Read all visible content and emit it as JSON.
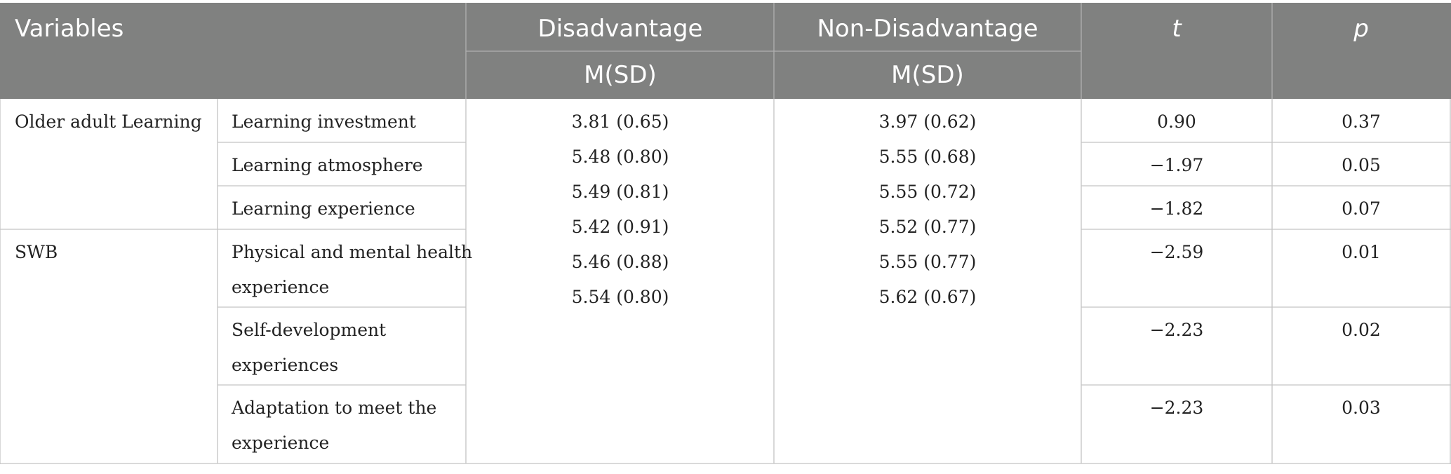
{
  "header": {
    "variables": "Variables",
    "disadvantage": "Disadvantage",
    "non_disadvantage": "Non-Disadvantage",
    "msd_1": "M(SD)",
    "msd_2": "M(SD)",
    "t": "t",
    "p": "p"
  },
  "groups": [
    {
      "label": "Older adult Learning"
    },
    {
      "label": "SWB"
    }
  ],
  "rows": [
    {
      "name": [
        "Learning investment"
      ],
      "t": "0.90",
      "p": "0.37"
    },
    {
      "name": [
        "Learning atmosphere"
      ],
      "t": "−1.97",
      "p": "0.05"
    },
    {
      "name": [
        "Learning experience"
      ],
      "t": "−1.82",
      "p": "0.07"
    },
    {
      "name": [
        "Physical and mental health",
        "experience"
      ],
      "t": "−2.59",
      "p": "0.01"
    },
    {
      "name": [
        "Self-development",
        "experiences"
      ],
      "t": "−2.23",
      "p": "0.02"
    },
    {
      "name": [
        "Adaptation to meet the",
        "experience"
      ],
      "t": "−2.23",
      "p": "0.03"
    }
  ],
  "disadvantage_values": [
    "3.81 (0.65)",
    "5.48 (0.80)",
    "5.49 (0.81)",
    "5.42 (0.91)",
    "5.46 (0.88)",
    "5.54 (0.80)"
  ],
  "non_disadvantage_values": [
    "3.97 (0.62)",
    "5.55 (0.68)",
    "5.55 (0.72)",
    "5.52 (0.77)",
    "5.55 (0.77)",
    "5.62 (0.67)"
  ],
  "colors": {
    "header_bg": "#808180",
    "header_text": "#ffffff",
    "grid": "#c4c4c4",
    "body_text": "#222222"
  }
}
